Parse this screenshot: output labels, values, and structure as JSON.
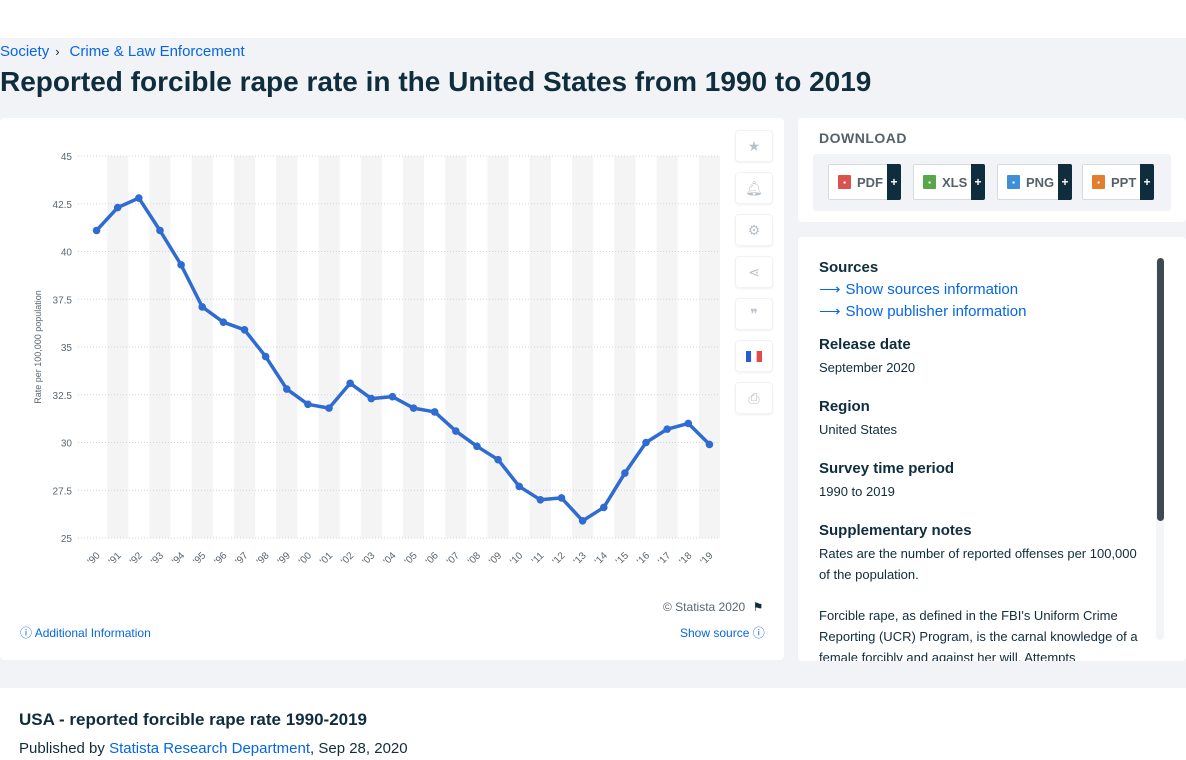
{
  "breadcrumb": {
    "items": [
      "Society",
      "Crime & Law Enforcement"
    ]
  },
  "page_title": "Reported forcible rape rate in the United States from 1990 to 2019",
  "chart_footer": {
    "copyright": "© Statista 2020",
    "additional_info": "Additional Information",
    "show_source": "Show source"
  },
  "download": {
    "title": "DOWNLOAD",
    "buttons": [
      {
        "label": "PDF",
        "color": "#d9534f"
      },
      {
        "label": "XLS",
        "color": "#5aa64a"
      },
      {
        "label": "PNG",
        "color": "#3f8fd6"
      },
      {
        "label": "PPT",
        "color": "#e37d2f"
      }
    ],
    "plus": "+"
  },
  "info": {
    "sources_heading": "Sources",
    "show_sources": "Show sources information",
    "show_publisher": "Show publisher information",
    "release_heading": "Release date",
    "release_value": "September 2020",
    "region_heading": "Region",
    "region_value": "United States",
    "survey_heading": "Survey time period",
    "survey_value": "1990 to 2019",
    "notes_heading": "Supplementary notes",
    "notes_value_1": "Rates are the number of reported offenses per 100,000 of the population.",
    "notes_value_2": "Forcible rape, as defined in the FBI's Uniform Crime Reporting (UCR) Program, is the carnal knowledge of a female forcibly and against her will. Attempts"
  },
  "bottom": {
    "title": "USA - reported forcible rape rate 1990-2019",
    "published_by": "Published by",
    "publisher": "Statista Research Department",
    "date": ", Sep 28, 2020"
  },
  "colors": {
    "line": "#2f6bd1",
    "accent": "#0666e5",
    "band": "#f4f4f4"
  },
  "chart_data": {
    "type": "line",
    "ylabel": "Rate per 100,000 population",
    "xlabel": "",
    "ylim": [
      25,
      45
    ],
    "yticks": [
      25,
      27.5,
      30,
      32.5,
      35,
      37.5,
      40,
      42.5,
      45
    ],
    "ytick_labels": [
      "25",
      "27.5",
      "30",
      "32.5",
      "35",
      "37.5",
      "40",
      "42.5",
      "45"
    ],
    "grid": true,
    "categories": [
      "'90",
      "'91",
      "'92",
      "'93",
      "'94",
      "'95",
      "'96",
      "'97",
      "'98",
      "'99",
      "'00",
      "'01",
      "'02",
      "'03",
      "'04",
      "'05",
      "'06",
      "'07",
      "'08",
      "'09",
      "'10",
      "'11",
      "'12",
      "'13",
      "'14",
      "'15",
      "'16",
      "'17",
      "'18",
      "'19"
    ],
    "values": [
      41.1,
      42.3,
      42.8,
      41.1,
      39.3,
      37.1,
      36.3,
      35.9,
      34.5,
      32.8,
      32.0,
      31.8,
      33.1,
      32.3,
      32.4,
      31.8,
      31.6,
      30.6,
      29.8,
      29.1,
      27.7,
      27.0,
      27.1,
      25.9,
      26.6,
      28.4,
      30.0,
      30.7,
      31.0,
      29.9
    ]
  }
}
